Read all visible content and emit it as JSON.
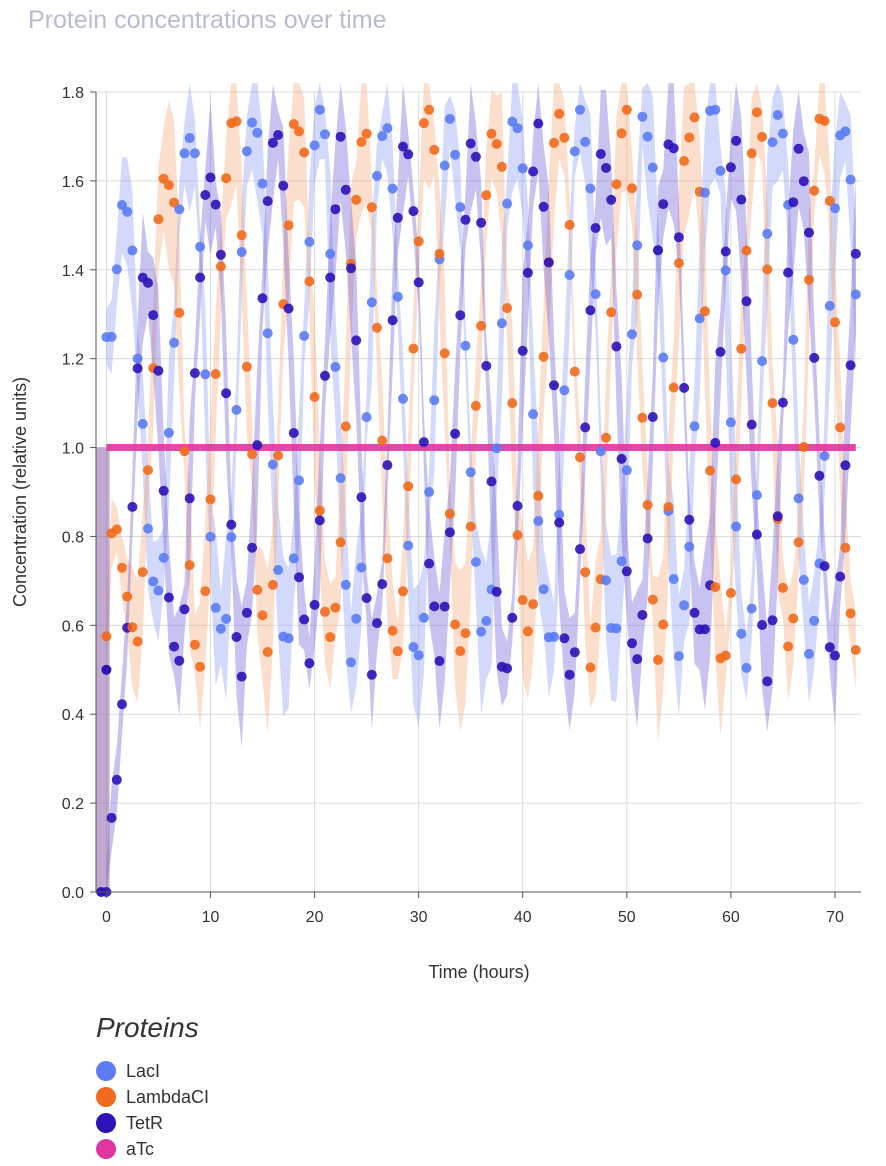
{
  "chart_data": {
    "type": "scatter",
    "title": "Protein concentrations over time",
    "xlabel": "Time (hours)",
    "ylabel": "Concentration (relative units)",
    "xlim": [
      -1,
      72.5
    ],
    "ylim": [
      0,
      1.8
    ],
    "x_ticks": [
      0,
      10,
      20,
      30,
      40,
      50,
      60,
      70
    ],
    "y_ticks": [
      0.0,
      0.2,
      0.4,
      0.6,
      0.8,
      1.0,
      1.2,
      1.4,
      1.6,
      1.8
    ],
    "grid": true,
    "legend_title": "Proteins",
    "legend_position": "bottom-left",
    "sample_step_hours": 0.5,
    "series": [
      {
        "name": "LacI",
        "color": "#5b7cf5",
        "band_color": "#8a9cf5",
        "min": 0.56,
        "max": 1.75,
        "period_hours": 17.0,
        "phase": 0.0,
        "noise": 0.06
      },
      {
        "name": "LambdaCI",
        "color": "#f26a1b",
        "band_color": "#f8a878",
        "min": 0.55,
        "max": 1.74,
        "period_hours": 17.0,
        "phase": 2.09,
        "noise": 0.06
      },
      {
        "name": "TetR",
        "color": "#2d12b8",
        "band_color": "#6f5fd8",
        "min": 0.53,
        "max": 1.68,
        "period_hours": 17.0,
        "phase": 4.19,
        "noise": 0.06
      },
      {
        "name": "aTc",
        "color": "#e0359f",
        "constant": 1.0
      }
    ],
    "initial_values": {
      "LacI": 1.23,
      "LambdaCI": 0.57,
      "TetR": 0.0
    },
    "aTc_start_value": 0.5
  }
}
